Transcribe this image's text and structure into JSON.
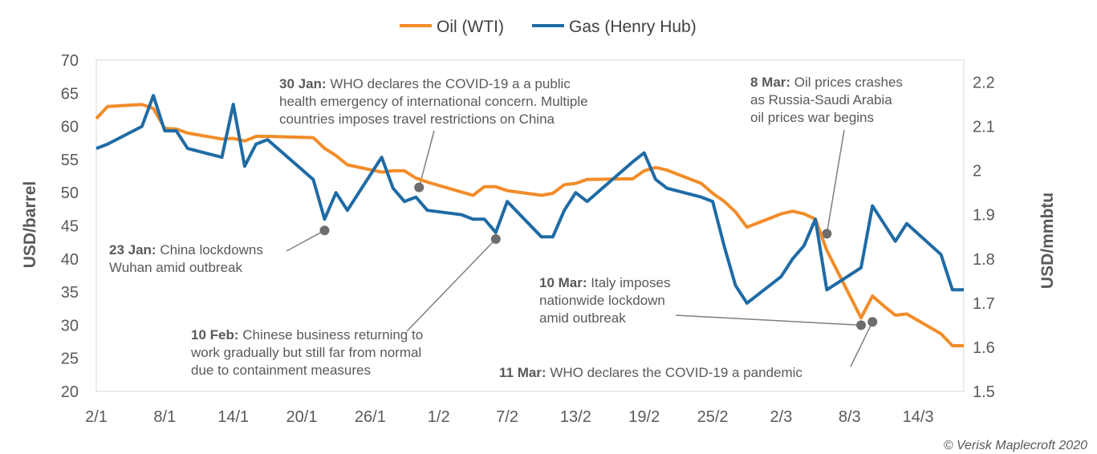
{
  "chart_data": {
    "type": "line",
    "legend_position": "top",
    "grid": false,
    "x_tick_labels": [
      "2/1",
      "8/1",
      "14/1",
      "20/1",
      "26/1",
      "1/2",
      "7/2",
      "13/2",
      "19/2",
      "25/2",
      "2/3",
      "8/3",
      "14/3"
    ],
    "y_left": {
      "label": "USD/barrel",
      "ylim": [
        20,
        70
      ],
      "ticks": [
        "20",
        "25",
        "30",
        "35",
        "40",
        "45",
        "50",
        "55",
        "60",
        "65",
        "70"
      ]
    },
    "y_right": {
      "label": "USD/mmbtu",
      "ylim": [
        1.5,
        2.25
      ],
      "ticks": [
        "1.5",
        "1.6",
        "1.7",
        "1.8",
        "1.9",
        "2",
        "2.1",
        "2.2"
      ]
    },
    "series": [
      {
        "name": "Oil (WTI)",
        "color": "#F28C28",
        "axis": "left",
        "points": [
          [
            "2/1",
            61.2
          ],
          [
            "3/1",
            63.0
          ],
          [
            "6/1",
            63.3
          ],
          [
            "7/1",
            62.7
          ],
          [
            "8/1",
            59.7
          ],
          [
            "9/1",
            59.6
          ],
          [
            "10/1",
            59.0
          ],
          [
            "13/1",
            58.1
          ],
          [
            "14/1",
            58.2
          ],
          [
            "15/1",
            57.8
          ],
          [
            "16/1",
            58.5
          ],
          [
            "17/1",
            58.5
          ],
          [
            "21/1",
            58.3
          ],
          [
            "22/1",
            56.7
          ],
          [
            "23/1",
            55.6
          ],
          [
            "24/1",
            54.2
          ],
          [
            "27/1",
            53.1
          ],
          [
            "28/1",
            53.3
          ],
          [
            "29/1",
            53.3
          ],
          [
            "30/1",
            52.2
          ],
          [
            "31/1",
            51.6
          ],
          [
            "3/2",
            50.1
          ],
          [
            "4/2",
            49.6
          ],
          [
            "5/2",
            50.9
          ],
          [
            "6/2",
            50.9
          ],
          [
            "7/2",
            50.3
          ],
          [
            "10/2",
            49.6
          ],
          [
            "11/2",
            49.9
          ],
          [
            "12/2",
            51.2
          ],
          [
            "13/2",
            51.4
          ],
          [
            "14/2",
            52.0
          ],
          [
            "18/2",
            52.1
          ],
          [
            "19/2",
            53.3
          ],
          [
            "20/2",
            53.8
          ],
          [
            "21/2",
            53.4
          ],
          [
            "24/2",
            51.4
          ],
          [
            "25/2",
            49.9
          ],
          [
            "26/2",
            48.7
          ],
          [
            "27/2",
            47.1
          ],
          [
            "28/2",
            44.8
          ],
          [
            "2/3",
            46.8
          ],
          [
            "3/3",
            47.2
          ],
          [
            "4/3",
            46.8
          ],
          [
            "5/3",
            46.0
          ],
          [
            "6/3",
            41.3
          ],
          [
            "9/3",
            31.1
          ],
          [
            "10/3",
            34.4
          ],
          [
            "11/3",
            32.9
          ],
          [
            "12/3",
            31.5
          ],
          [
            "13/3",
            31.7
          ],
          [
            "16/3",
            28.7
          ],
          [
            "17/3",
            26.9
          ],
          [
            "18/3",
            26.9
          ]
        ]
      },
      {
        "name": "Gas (Henry Hub)",
        "color": "#1F6BA5",
        "axis": "right",
        "points": [
          [
            "2/1",
            2.05
          ],
          [
            "3/1",
            2.06
          ],
          [
            "6/1",
            2.1
          ],
          [
            "7/1",
            2.17
          ],
          [
            "8/1",
            2.09
          ],
          [
            "9/1",
            2.09
          ],
          [
            "10/1",
            2.05
          ],
          [
            "13/1",
            2.03
          ],
          [
            "14/1",
            2.15
          ],
          [
            "15/1",
            2.01
          ],
          [
            "16/1",
            2.06
          ],
          [
            "17/1",
            2.07
          ],
          [
            "21/1",
            1.98
          ],
          [
            "22/1",
            1.89
          ],
          [
            "23/1",
            1.95
          ],
          [
            "24/1",
            1.91
          ],
          [
            "27/1",
            2.03
          ],
          [
            "28/1",
            1.96
          ],
          [
            "29/1",
            1.93
          ],
          [
            "30/1",
            1.94
          ],
          [
            "31/1",
            1.91
          ],
          [
            "3/2",
            1.9
          ],
          [
            "4/2",
            1.89
          ],
          [
            "5/2",
            1.89
          ],
          [
            "6/2",
            1.86
          ],
          [
            "7/2",
            1.93
          ],
          [
            "10/2",
            1.85
          ],
          [
            "11/2",
            1.85
          ],
          [
            "12/2",
            1.91
          ],
          [
            "13/2",
            1.95
          ],
          [
            "14/2",
            1.93
          ],
          [
            "18/2",
            2.02
          ],
          [
            "19/2",
            2.04
          ],
          [
            "20/2",
            1.98
          ],
          [
            "21/2",
            1.96
          ],
          [
            "24/2",
            1.94
          ],
          [
            "25/2",
            1.93
          ],
          [
            "26/2",
            1.83
          ],
          [
            "27/2",
            1.74
          ],
          [
            "28/2",
            1.7
          ],
          [
            "2/3",
            1.76
          ],
          [
            "3/3",
            1.8
          ],
          [
            "4/3",
            1.83
          ],
          [
            "5/3",
            1.89
          ],
          [
            "6/3",
            1.73
          ],
          [
            "9/3",
            1.78
          ],
          [
            "10/3",
            1.92
          ],
          [
            "11/3",
            1.88
          ],
          [
            "12/3",
            1.84
          ],
          [
            "13/3",
            1.88
          ],
          [
            "16/3",
            1.81
          ],
          [
            "17/3",
            1.73
          ],
          [
            "18/3",
            1.73
          ]
        ]
      }
    ],
    "annotations": [
      {
        "bold": "30 Jan:",
        "lines": [
          "WHO declares the COVID-19 a a public",
          "health emergency of international concern. Multiple",
          "countries imposes travel restrictions on China"
        ],
        "target_date": "30/1",
        "target_series": "Oil (WTI)"
      },
      {
        "bold": "8 Mar:",
        "lines": [
          "Oil prices crashes",
          "as Russia-Saudi Arabia",
          "oil prices war begins"
        ],
        "target_date": "6/3",
        "target_value": 43.8
      },
      {
        "bold": "23 Jan:",
        "lines": [
          "China lockdowns",
          "Wuhan amid outbreak"
        ],
        "target_date": "22/1",
        "target_value": 44.3
      },
      {
        "bold": "10 Feb:",
        "lines": [
          "Chinese business returning to",
          "work gradually but still far from normal",
          "due to containment measures"
        ],
        "target_date": "6/2",
        "target_value": 43.0
      },
      {
        "bold": "10 Mar:",
        "lines": [
          "Italy imposes",
          "nationwide lockdown",
          "amid outbreak"
        ],
        "target_date": "9/3",
        "target_value": 30.0
      },
      {
        "bold": "11 Mar:",
        "lines": [
          "WHO declares the COVID-19 a pandemic"
        ],
        "target_date": "10/3",
        "target_value": 30.5
      }
    ]
  },
  "copyright": "© Verisk Maplecroft 2020"
}
